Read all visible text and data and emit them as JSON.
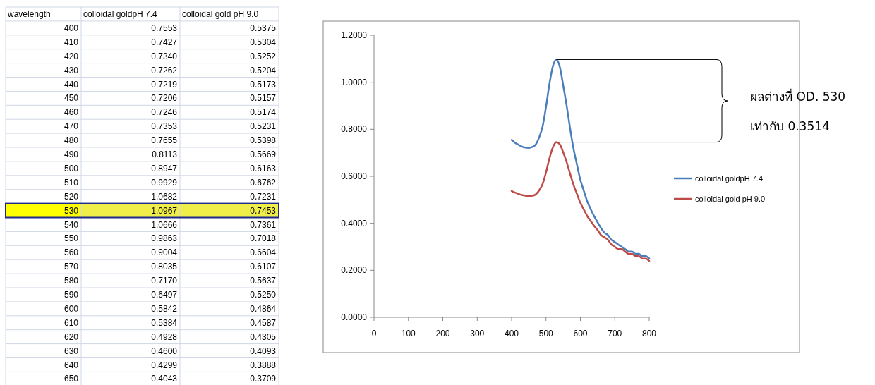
{
  "chart_data": [
    {
      "type": "heatmap",
      "ylabel": "wavelength",
      "categories": [
        "colloidal goldpH 7.4",
        "colloidal gold pH 9.0"
      ],
      "y_categories": [
        "400",
        "410",
        "420",
        "430",
        "440",
        "450",
        "460",
        "470",
        "480",
        "490",
        "500",
        "510",
        "520",
        "530",
        "540",
        "550",
        "560",
        "570",
        "580",
        "590",
        "600",
        "610",
        "620",
        "630",
        "640",
        "650"
      ],
      "cells": [
        [
          0.7553,
          0.5375
        ],
        [
          0.7427,
          0.5304
        ],
        [
          0.734,
          0.5252
        ],
        [
          0.7262,
          0.5204
        ],
        [
          0.7219,
          0.5173
        ],
        [
          0.7206,
          0.5157
        ],
        [
          0.7246,
          0.5174
        ],
        [
          0.7353,
          0.5231
        ],
        [
          0.7655,
          0.5398
        ],
        [
          0.8113,
          0.5669
        ],
        [
          0.8947,
          0.6163
        ],
        [
          0.9929,
          0.6762
        ],
        [
          1.0682,
          0.7231
        ],
        [
          1.0967,
          0.7453
        ],
        [
          1.0666,
          0.7361
        ],
        [
          0.9863,
          0.7018
        ],
        [
          0.9004,
          0.6604
        ],
        [
          0.8035,
          0.6107
        ],
        [
          0.717,
          0.5637
        ],
        [
          0.6497,
          0.525
        ],
        [
          0.5842,
          0.4864
        ],
        [
          0.5384,
          0.4587
        ],
        [
          0.4928,
          0.4305
        ],
        [
          0.46,
          0.4093
        ],
        [
          0.4299,
          0.3888
        ],
        [
          0.4043,
          0.3709
        ]
      ],
      "cell_labels": [
        [
          "0.7553",
          "0.5375"
        ],
        [
          "0.7427",
          "0.5304"
        ],
        [
          "0.7340",
          "0.5252"
        ],
        [
          "0.7262",
          "0.5204"
        ],
        [
          "0.7219",
          "0.5173"
        ],
        [
          "0.7206",
          "0.5157"
        ],
        [
          "0.7246",
          "0.5174"
        ],
        [
          "0.7353",
          "0.5231"
        ],
        [
          "0.7655",
          "0.5398"
        ],
        [
          "0.8113",
          "0.5669"
        ],
        [
          "0.8947",
          "0.6163"
        ],
        [
          "0.9929",
          "0.6762"
        ],
        [
          "1.0682",
          "0.7231"
        ],
        [
          "1.0967",
          "0.7453"
        ],
        [
          "1.0666",
          "0.7361"
        ],
        [
          "0.9863",
          "0.7018"
        ],
        [
          "0.9004",
          "0.6604"
        ],
        [
          "0.8035",
          "0.6107"
        ],
        [
          "0.7170",
          "0.5637"
        ],
        [
          "0.6497",
          "0.5250"
        ],
        [
          "0.5842",
          "0.4864"
        ],
        [
          "0.5384",
          "0.4587"
        ],
        [
          "0.4928",
          "0.4305"
        ],
        [
          "0.4600",
          "0.4093"
        ],
        [
          "0.4299",
          "0.3888"
        ],
        [
          "0.4043",
          "0.3709"
        ]
      ]
    },
    {
      "type": "line",
      "x": [
        400,
        410,
        420,
        430,
        440,
        450,
        460,
        470,
        480,
        490,
        500,
        510,
        520,
        530,
        540,
        550,
        560,
        570,
        580,
        590,
        600,
        610,
        620,
        630,
        640,
        650,
        660,
        670,
        680,
        690,
        700,
        710,
        720,
        730,
        740,
        750,
        760,
        770,
        780,
        790,
        800
      ],
      "series": [
        {
          "name": "colloidal goldpH 7.4",
          "color": "#4a7ebb",
          "values": [
            0.7553,
            0.7427,
            0.734,
            0.7262,
            0.7219,
            0.7206,
            0.7246,
            0.7353,
            0.7655,
            0.8113,
            0.8947,
            0.9929,
            1.0682,
            1.0967,
            1.0666,
            0.9863,
            0.9004,
            0.8035,
            0.717,
            0.6497,
            0.5842,
            0.5384,
            0.4928,
            0.46,
            0.4299,
            0.4043,
            0.38,
            0.36,
            0.35,
            0.33,
            0.32,
            0.31,
            0.3,
            0.29,
            0.28,
            0.28,
            0.27,
            0.27,
            0.26,
            0.26,
            0.25
          ]
        },
        {
          "name": "colloidal gold pH 9.0",
          "color": "#be4b48",
          "values": [
            0.5375,
            0.5304,
            0.5252,
            0.5204,
            0.5173,
            0.5157,
            0.5174,
            0.5231,
            0.5398,
            0.5669,
            0.6163,
            0.6762,
            0.7231,
            0.7453,
            0.7361,
            0.7018,
            0.6604,
            0.6107,
            0.5637,
            0.525,
            0.4864,
            0.4587,
            0.4305,
            0.4093,
            0.3888,
            0.3709,
            0.35,
            0.34,
            0.33,
            0.31,
            0.3,
            0.29,
            0.29,
            0.28,
            0.27,
            0.27,
            0.26,
            0.26,
            0.25,
            0.25,
            0.24
          ]
        }
      ],
      "xlim": [
        0,
        800
      ],
      "xticks": [
        0,
        100,
        200,
        300,
        400,
        500,
        600,
        700,
        800
      ],
      "ylim": [
        0,
        1.2
      ],
      "yticks": [
        {
          "value": 0,
          "label": "0.0000"
        },
        {
          "value": 0.2,
          "label": "0.2000"
        },
        {
          "value": 0.4,
          "label": "0.4000"
        },
        {
          "value": 0.6,
          "label": "0.6000"
        },
        {
          "value": 0.8,
          "label": "0.8000"
        },
        {
          "value": 1.0,
          "label": "1.0000"
        },
        {
          "value": 1.2,
          "label": "1.2000"
        }
      ],
      "ref_lines": [
        {
          "axis": "y",
          "value": 1.0967,
          "color": "#000000"
        },
        {
          "axis": "y",
          "value": 0.7453,
          "color": "#000000"
        }
      ],
      "legend": "right",
      "marker": "none",
      "line_style": "solid",
      "annotations": [
        "ผลต่างที่ OD. 530",
        "เท่ากับ 0.3514"
      ]
    }
  ]
}
